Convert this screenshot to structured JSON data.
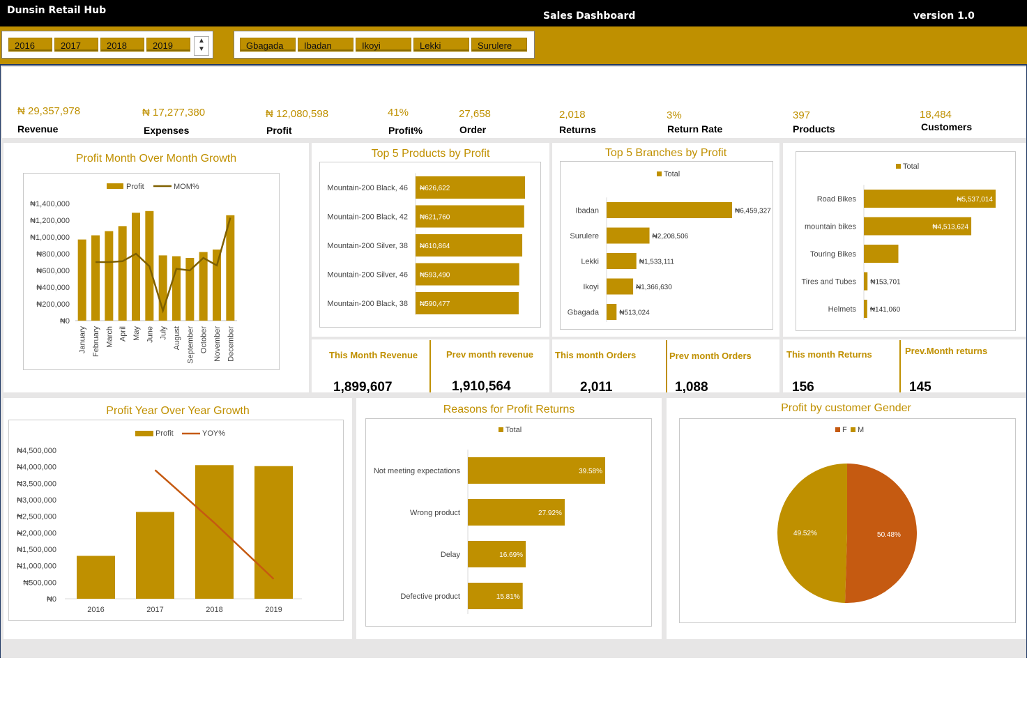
{
  "header": {
    "app_name": "Dunsin Retail Hub",
    "title": "Sales Dashboard",
    "version": "version 1.0"
  },
  "filters": {
    "years": [
      "2016",
      "2017",
      "2018",
      "2019"
    ],
    "branches": [
      "Gbagada",
      "Ibadan",
      "Ikoyi",
      "Lekki",
      "Surulere"
    ]
  },
  "kpis": [
    {
      "value": "₦ 29,357,978",
      "label": "Revenue"
    },
    {
      "value": "₦ 17,277,380",
      "label": "Expenses"
    },
    {
      "value": "₦ 12,080,598",
      "label": "Profit"
    },
    {
      "value": "41%",
      "label": "Profit%"
    },
    {
      "value": "27,658",
      "label": "Order"
    },
    {
      "value": "2,018",
      "label": "Returns"
    },
    {
      "value": "3%",
      "label": "Return Rate"
    },
    {
      "value": "397",
      "label": "Products"
    },
    {
      "value": "18,484",
      "label": "Customers"
    }
  ],
  "cards": [
    {
      "title": "This Month Revenue",
      "value": "1,899,607"
    },
    {
      "title": "Prev month revenue",
      "value": "1,910,564"
    },
    {
      "title": "This month Orders",
      "value": "2,011"
    },
    {
      "title": "Prev month Orders",
      "value": "1,088"
    },
    {
      "title": "This month Returns",
      "value": "156"
    },
    {
      "title": "Prev.Month returns",
      "value": "145"
    }
  ],
  "colors": {
    "gold": "#bf9000",
    "brown": "#7f6000",
    "orange": "#c55a11",
    "black": "#000000"
  },
  "chart_data": [
    {
      "type": "bar",
      "title": "Profit Month Over Month Growth",
      "categories": [
        "January",
        "February",
        "March",
        "April",
        "May",
        "June",
        "July",
        "August",
        "September",
        "October",
        "November",
        "December"
      ],
      "series": [
        {
          "name": "Profit",
          "type": "bar",
          "values": [
            970000,
            1020000,
            1070000,
            1130000,
            1290000,
            1310000,
            780000,
            770000,
            750000,
            820000,
            850000,
            1260000
          ]
        },
        {
          "name": "MOM%",
          "type": "line",
          "values": [
            null,
            700000,
            700000,
            710000,
            800000,
            650000,
            120000,
            620000,
            600000,
            750000,
            660000,
            1230000
          ]
        }
      ],
      "yticks": [
        "₦0",
        "₦200,000",
        "₦400,000",
        "₦600,000",
        "₦800,000",
        "₦1,000,000",
        "₦1,200,000",
        "₦1,400,000"
      ],
      "ylim": [
        0,
        1400000
      ]
    },
    {
      "type": "bar",
      "title": "Top 5 Products by Profit",
      "categories": [
        "Mountain-200 Black, 46",
        "Mountain-200 Black, 42",
        "Mountain-200 Silver, 38",
        "Mountain-200 Silver, 46",
        "Mountain-200 Black, 38"
      ],
      "values": [
        626622,
        621760,
        610864,
        593490,
        590477
      ],
      "labels": [
        "₦626,622",
        "₦621,760",
        "₦610,864",
        "₦593,490",
        "₦590,477"
      ]
    },
    {
      "type": "bar",
      "title": "Top 5 Branches by Profit",
      "legend": "Total",
      "categories": [
        "Ibadan",
        "Surulere",
        "Lekki",
        "Ikoyi",
        "Gbagada"
      ],
      "values": [
        6459327,
        2208506,
        1533111,
        1366630,
        513024
      ],
      "labels": [
        "₦6,459,327",
        "₦2,208,506",
        "₦1,533,111",
        "₦1,366,630",
        "₦513,024"
      ]
    },
    {
      "type": "bar",
      "legend": "Total",
      "categories": [
        "Road Bikes",
        "mountain bikes",
        "Touring Bikes",
        "Tires and Tubes",
        "Helmets"
      ],
      "values": [
        5537014,
        4513624,
        1450000,
        153701,
        141060
      ],
      "labels": [
        "₦5,537,014",
        "₦4,513,624",
        "",
        "₦153,701",
        "₦141,060"
      ]
    },
    {
      "type": "bar",
      "title": "Profit Year Over Year Growth",
      "categories": [
        "2016",
        "2017",
        "2018",
        "2019"
      ],
      "series": [
        {
          "name": "Profit",
          "type": "bar",
          "values": [
            1300000,
            2630000,
            4050000,
            4020000
          ]
        },
        {
          "name": "YOY%",
          "type": "line",
          "values": [
            null,
            3900000,
            2300000,
            600000
          ]
        }
      ],
      "yticks": [
        "₦0",
        "₦500,000",
        "₦1,000,000",
        "₦1,500,000",
        "₦2,000,000",
        "₦2,500,000",
        "₦3,000,000",
        "₦3,500,000",
        "₦4,000,000",
        "₦4,500,000"
      ],
      "ylim": [
        0,
        4500000
      ]
    },
    {
      "type": "bar",
      "title": "Reasons for Profit Returns",
      "legend": "Total",
      "categories": [
        "Not meeting expectations",
        "Wrong product",
        "Delay",
        "Defective product"
      ],
      "values": [
        39.58,
        27.92,
        16.69,
        15.81
      ],
      "labels": [
        "39.58%",
        "27.92%",
        "16.69%",
        "15.81%"
      ]
    },
    {
      "type": "pie",
      "title": "Profit by customer Gender",
      "categories": [
        "F",
        "M"
      ],
      "values": [
        50.48,
        49.52
      ],
      "labels": [
        "50.48%",
        "49.52%"
      ]
    }
  ]
}
